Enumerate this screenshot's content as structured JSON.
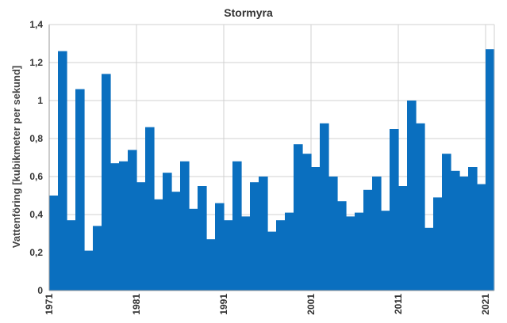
{
  "chart_data": {
    "type": "bar",
    "title": "Stormyra",
    "ylabel": "Vattenföring [kubikmeter per sekund]",
    "xlabel": "",
    "ylim": [
      0,
      1.4
    ],
    "yticks": [
      "0",
      "0,2",
      "0,4",
      "0,6",
      "0,8",
      "1",
      "1,2",
      "1,4"
    ],
    "ytick_values": [
      0,
      0.2,
      0.4,
      0.6,
      0.8,
      1.0,
      1.2,
      1.4
    ],
    "xtick_labels": [
      "1971",
      "1981",
      "1991",
      "2001",
      "2011",
      "2021"
    ],
    "xtick_years": [
      1971,
      1981,
      1991,
      2001,
      2011,
      2021
    ],
    "grid": true,
    "legend": "none",
    "bar_color": "#0a6fbf",
    "categories": [
      1971,
      1972,
      1973,
      1974,
      1975,
      1976,
      1977,
      1978,
      1979,
      1980,
      1981,
      1982,
      1983,
      1984,
      1985,
      1986,
      1987,
      1988,
      1989,
      1990,
      1991,
      1992,
      1993,
      1994,
      1995,
      1996,
      1997,
      1998,
      1999,
      2000,
      2001,
      2002,
      2003,
      2004,
      2005,
      2006,
      2007,
      2008,
      2009,
      2010,
      2011,
      2012,
      2013,
      2014,
      2015,
      2016,
      2017,
      2018,
      2019,
      2020,
      2021
    ],
    "values": [
      0.5,
      1.26,
      0.37,
      1.06,
      0.21,
      0.34,
      1.14,
      0.67,
      0.68,
      0.74,
      0.57,
      0.86,
      0.48,
      0.62,
      0.52,
      0.68,
      0.43,
      0.55,
      0.27,
      0.46,
      0.37,
      0.68,
      0.39,
      0.57,
      0.6,
      0.31,
      0.37,
      0.41,
      0.77,
      0.72,
      0.65,
      0.88,
      0.6,
      0.47,
      0.39,
      0.41,
      0.53,
      0.6,
      0.42,
      0.85,
      0.55,
      1.0,
      0.88,
      0.33,
      0.49,
      0.72,
      0.63,
      0.6,
      0.65,
      0.56,
      1.27
    ]
  }
}
